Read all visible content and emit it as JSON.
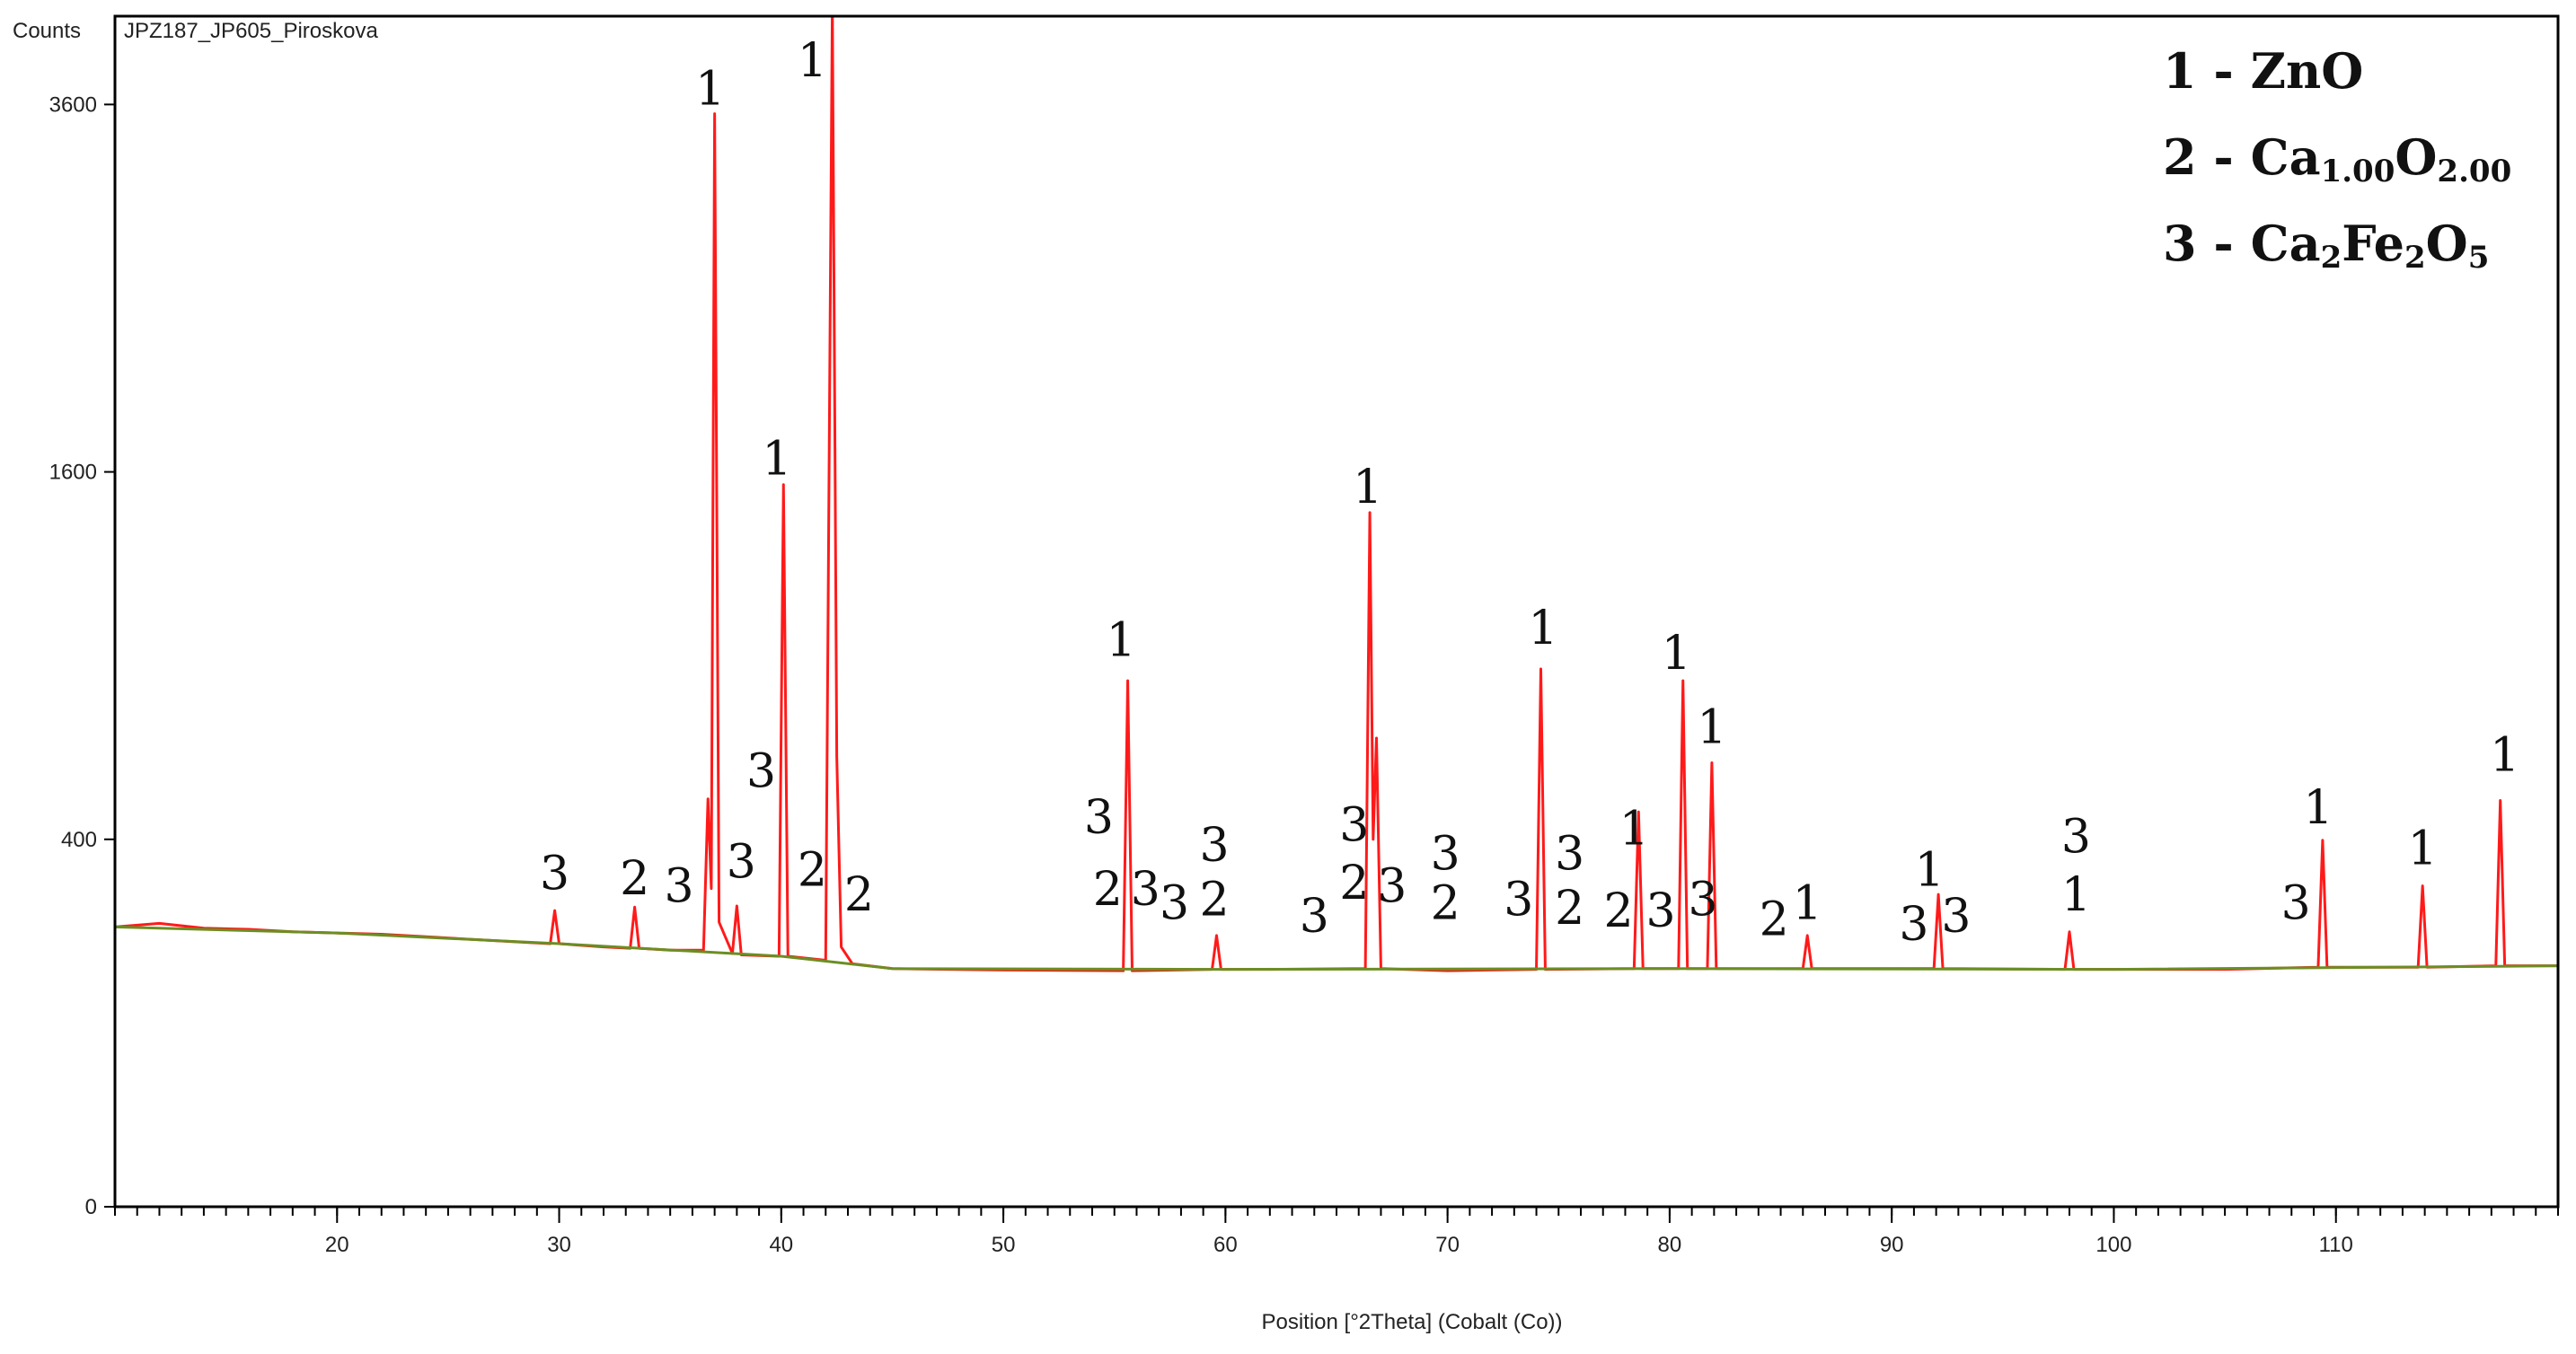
{
  "chart_data": {
    "type": "line",
    "title": "JPZ187_JP605_Piroskova",
    "y_label": "Counts",
    "x_label": "Position [°2Theta] (Cobalt (Co))",
    "yscale": "sqrt",
    "xlim": [
      10,
      120
    ],
    "ylim": [
      0,
      4200
    ],
    "xticks": [
      20,
      30,
      40,
      50,
      60,
      70,
      80,
      90,
      100,
      110
    ],
    "xminor_step": 1,
    "yticks": [
      0,
      400,
      1600,
      3600
    ],
    "grid": false,
    "series": [
      {
        "color": "#ff1a1a",
        "x": [
          10,
          12,
          14,
          16,
          18,
          20,
          22,
          24,
          26,
          28,
          29.6,
          29.8,
          30.0,
          32,
          33.2,
          33.4,
          33.6,
          35,
          36.5,
          36.7,
          36.85,
          37.0,
          37.2,
          37.8,
          38.0,
          38.2,
          39.9,
          40.1,
          40.3,
          42.0,
          42.3,
          42.5,
          42.7,
          43.2,
          45,
          50,
          55.4,
          55.6,
          55.8,
          59.4,
          59.6,
          59.8,
          62,
          66.3,
          66.5,
          66.65,
          66.8,
          67.0,
          70,
          74.0,
          74.2,
          74.4,
          78.4,
          78.6,
          78.8,
          80.4,
          80.6,
          80.8,
          81.7,
          81.9,
          82.1,
          86.0,
          86.2,
          86.4,
          91.9,
          92.1,
          92.3,
          97.8,
          98.0,
          98.2,
          105,
          109.2,
          109.4,
          109.6,
          113.7,
          113.9,
          114.1,
          117.2,
          117.4,
          117.6,
          120
        ],
        "values": [
          232,
          238,
          230,
          228,
          224,
          222,
          220,
          216,
          212,
          208,
          205,
          260,
          205,
          200,
          198,
          266,
          198,
          195,
          195,
          493,
          300,
          3540,
          240,
          190,
          268,
          188,
          186,
          1545,
          186,
          180,
          4300,
          600,
          200,
          175,
          168,
          166,
          165,
          820,
          165,
          167,
          218,
          167,
          167,
          168,
          1428,
          400,
          651,
          168,
          165,
          167,
          857,
          167,
          168,
          462,
          168,
          168,
          820,
          168,
          168,
          584,
          168,
          168,
          218,
          168,
          168,
          289,
          168,
          167,
          224,
          167,
          167,
          170,
          398,
          170,
          170,
          305,
          170,
          172,
          489,
          172,
          172
        ]
      },
      {
        "color": "#6b8e23",
        "x": [
          10,
          20,
          30,
          40,
          45,
          60,
          80,
          100,
          120
        ],
        "values": [
          232,
          222,
          205,
          186,
          168,
          167,
          168,
          167,
          172
        ]
      }
    ],
    "annotations": [
      {
        "text": "1",
        "x": 36.8,
        "y": 3706
      },
      {
        "text": "1",
        "x": 41.4,
        "y": 3894
      },
      {
        "text": "1",
        "x": 39.8,
        "y": 1659
      },
      {
        "text": "3",
        "x": 39.1,
        "y": 563
      },
      {
        "text": "3",
        "x": 29.8,
        "y": 330
      },
      {
        "text": "2",
        "x": 33.4,
        "y": 320
      },
      {
        "text": "3",
        "x": 35.4,
        "y": 305
      },
      {
        "text": "3",
        "x": 38.2,
        "y": 353
      },
      {
        "text": "2",
        "x": 41.4,
        "y": 337
      },
      {
        "text": "2",
        "x": 43.5,
        "y": 289
      },
      {
        "text": "1",
        "x": 55.3,
        "y": 953
      },
      {
        "text": "3",
        "x": 54.3,
        "y": 450
      },
      {
        "text": "2",
        "x": 54.7,
        "y": 299
      },
      {
        "text": "3",
        "x": 56.4,
        "y": 299
      },
      {
        "text": "3",
        "x": 57.7,
        "y": 274
      },
      {
        "text": "3",
        "x": 59.5,
        "y": 388
      },
      {
        "text": "2",
        "x": 59.5,
        "y": 280
      },
      {
        "text": "3",
        "x": 64.0,
        "y": 251
      },
      {
        "text": "1",
        "x": 66.4,
        "y": 1537
      },
      {
        "text": "3",
        "x": 65.8,
        "y": 432
      },
      {
        "text": "2",
        "x": 65.8,
        "y": 311
      },
      {
        "text": "3",
        "x": 67.5,
        "y": 305
      },
      {
        "text": "3",
        "x": 69.9,
        "y": 370
      },
      {
        "text": "2",
        "x": 69.9,
        "y": 274
      },
      {
        "text": "1",
        "x": 74.3,
        "y": 993
      },
      {
        "text": "3",
        "x": 73.2,
        "y": 280
      },
      {
        "text": "3",
        "x": 75.5,
        "y": 370
      },
      {
        "text": "2",
        "x": 75.5,
        "y": 265
      },
      {
        "text": "1",
        "x": 78.4,
        "y": 424
      },
      {
        "text": "2",
        "x": 77.7,
        "y": 260
      },
      {
        "text": "3",
        "x": 79.6,
        "y": 260
      },
      {
        "text": "1",
        "x": 80.3,
        "y": 910
      },
      {
        "text": "1",
        "x": 81.9,
        "y": 683
      },
      {
        "text": "3",
        "x": 81.5,
        "y": 280
      },
      {
        "text": "2",
        "x": 84.7,
        "y": 245
      },
      {
        "text": "1",
        "x": 86.2,
        "y": 274
      },
      {
        "text": "1",
        "x": 91.7,
        "y": 337
      },
      {
        "text": "3",
        "x": 91.0,
        "y": 237
      },
      {
        "text": "3",
        "x": 92.9,
        "y": 251
      },
      {
        "text": "3",
        "x": 98.3,
        "y": 406
      },
      {
        "text": "1",
        "x": 98.3,
        "y": 289
      },
      {
        "text": "3",
        "x": 108.2,
        "y": 274
      },
      {
        "text": "1",
        "x": 109.2,
        "y": 473
      },
      {
        "text": "1",
        "x": 113.9,
        "y": 381
      },
      {
        "text": "1",
        "x": 117.6,
        "y": 606
      }
    ],
    "legend_position": "upper right",
    "legend": [
      [
        {
          "text": "1 - ZnO"
        }
      ],
      [
        {
          "text": "2 - Ca"
        },
        {
          "text": "1.00",
          "sub": true
        },
        {
          "text": "O"
        },
        {
          "text": "2.00",
          "sub": true
        }
      ],
      [
        {
          "text": "3 - Ca"
        },
        {
          "text": "2",
          "sub": true
        },
        {
          "text": "Fe"
        },
        {
          "text": "2",
          "sub": true
        },
        {
          "text": "O"
        },
        {
          "text": "5",
          "sub": true
        }
      ]
    ]
  }
}
